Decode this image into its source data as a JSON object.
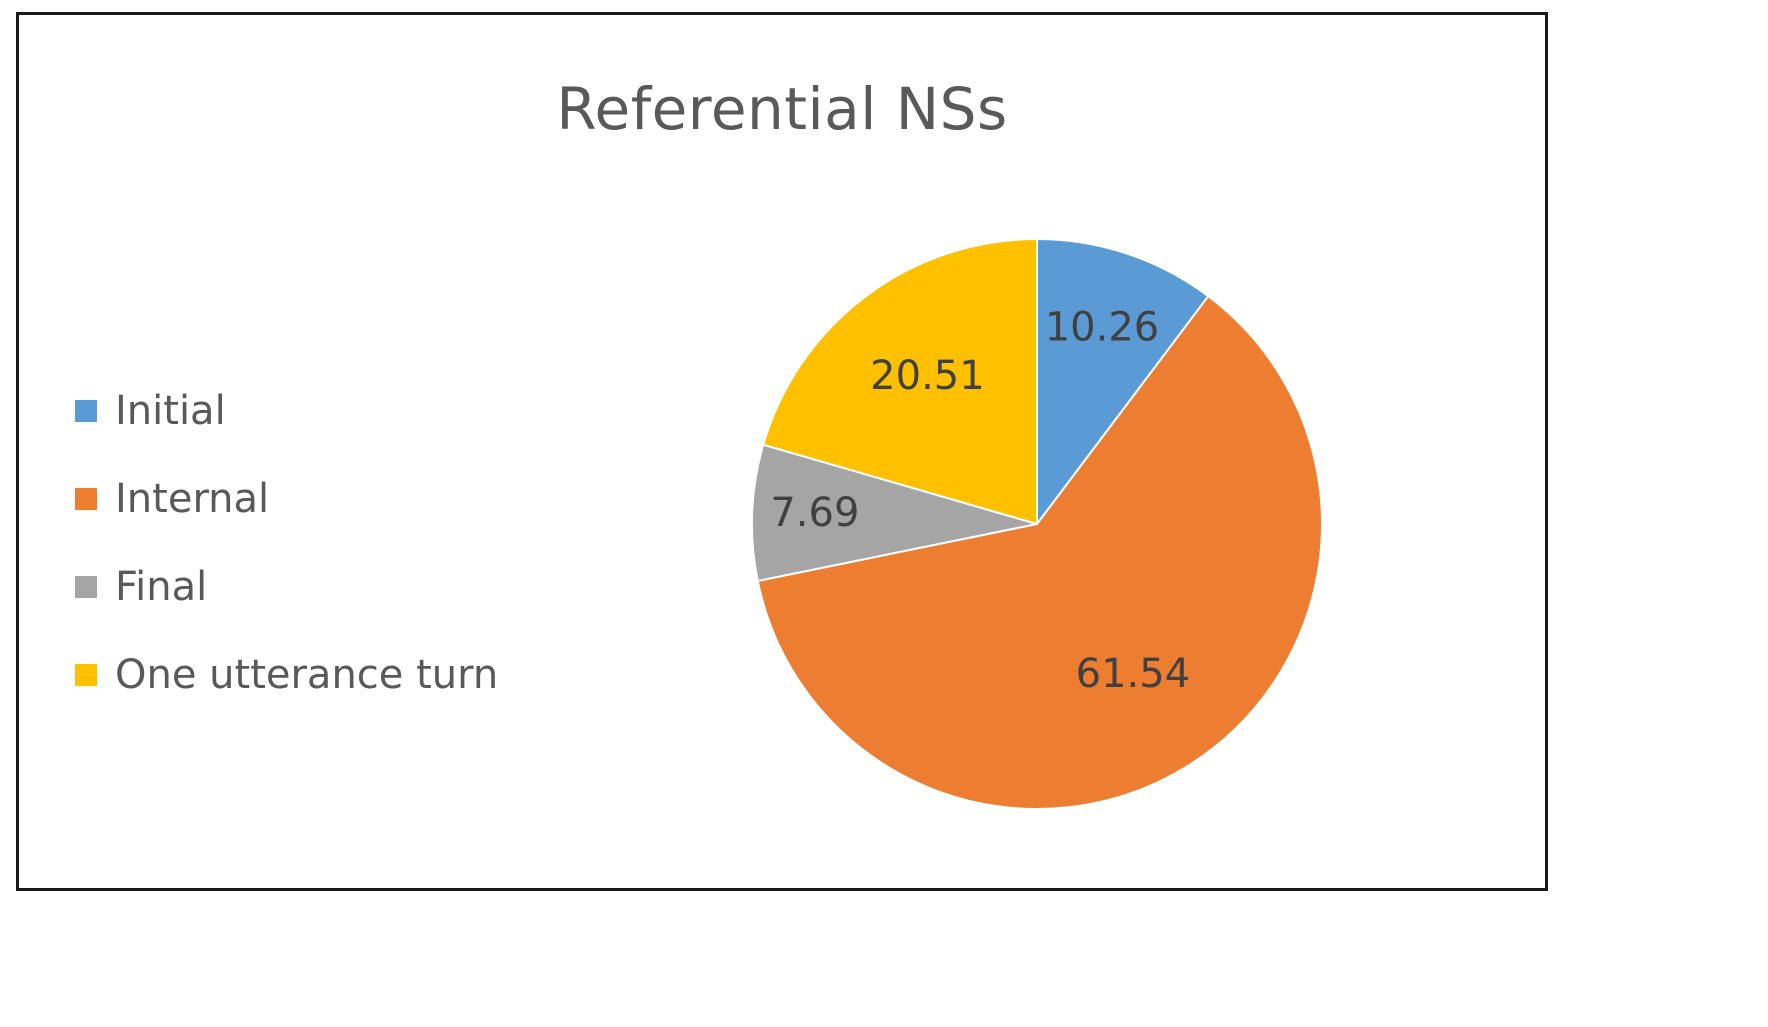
{
  "chart_data": {
    "type": "pie",
    "title": "Referential NSs",
    "legend_position": "left",
    "categories": [
      "Initial",
      "Internal",
      "Final",
      "One utterance turn"
    ],
    "values": [
      10.26,
      61.54,
      7.69,
      20.51
    ],
    "labels": [
      "10.26",
      "61.54",
      "7.69",
      "20.51"
    ],
    "colors": [
      "#5B9BD5",
      "#ED7D31",
      "#A5A5A5",
      "#FFC000"
    ]
  }
}
